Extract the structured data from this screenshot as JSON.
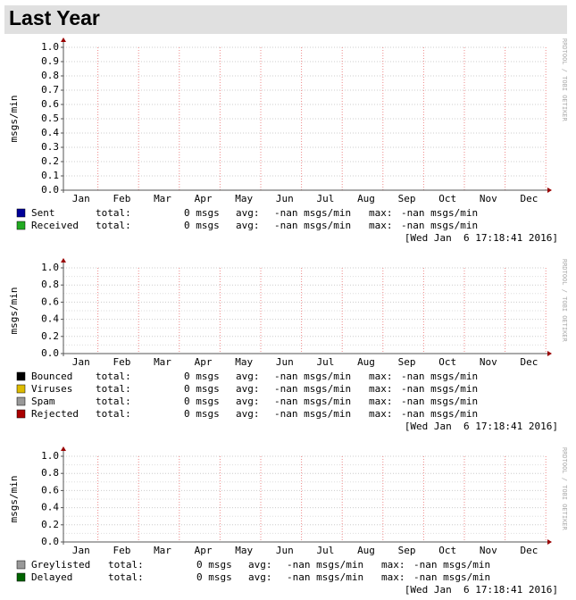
{
  "header": {
    "title": "Last Year"
  },
  "chart_data": [
    {
      "type": "line",
      "ylabel": "msgs/min",
      "watermark": "RRDTOOL / TOBI OETIKER",
      "categories": [
        "Jan",
        "Feb",
        "Mar",
        "Apr",
        "May",
        "Jun",
        "Jul",
        "Aug",
        "Sep",
        "Oct",
        "Nov",
        "Dec"
      ],
      "ylim": [
        0,
        1
      ],
      "yticks": [
        {
          "value": 0,
          "label": "0.0"
        },
        0.1,
        0.2,
        0.3,
        0.4,
        0.5,
        0.6,
        0.7,
        0.8,
        0.9,
        {
          "value": 1,
          "label": "1.0"
        }
      ],
      "grid": true,
      "series": [
        {
          "name": "Sent",
          "color": "#000099",
          "total_label": "total:",
          "total": "0 msgs",
          "avg_label": "avg:",
          "avg": "-nan msgs/min",
          "max_label": "max:",
          "max": "-nan msgs/min"
        },
        {
          "name": "Received",
          "color": "#22aa22",
          "total_label": "total:",
          "total": "0 msgs",
          "avg_label": "avg:",
          "avg": "-nan msgs/min",
          "max_label": "max:",
          "max": "-nan msgs/min"
        }
      ],
      "timestamp": "[Wed Jan  6 17:18:41 2016]"
    },
    {
      "type": "line",
      "ylabel": "msgs/min",
      "watermark": "RRDTOOL / TOBI OETIKER",
      "categories": [
        "Jan",
        "Feb",
        "Mar",
        "Apr",
        "May",
        "Jun",
        "Jul",
        "Aug",
        "Sep",
        "Oct",
        "Nov",
        "Dec"
      ],
      "ylim": [
        0,
        1
      ],
      "yticks": [
        {
          "value": 0,
          "label": "0.0"
        },
        0.2,
        0.4,
        0.6,
        0.8,
        {
          "value": 1,
          "label": "1.0"
        }
      ],
      "grid": true,
      "series": [
        {
          "name": "Bounced",
          "color": "#000000",
          "total_label": "total:",
          "total": "0 msgs",
          "avg_label": "avg:",
          "avg": "-nan msgs/min",
          "max_label": "max:",
          "max": "-nan msgs/min"
        },
        {
          "name": "Viruses",
          "color": "#ddbb00",
          "total_label": "total:",
          "total": "0 msgs",
          "avg_label": "avg:",
          "avg": "-nan msgs/min",
          "max_label": "max:",
          "max": "-nan msgs/min"
        },
        {
          "name": "Spam",
          "color": "#999999",
          "total_label": "total:",
          "total": "0 msgs",
          "avg_label": "avg:",
          "avg": "-nan msgs/min",
          "max_label": "max:",
          "max": "-nan msgs/min"
        },
        {
          "name": "Rejected",
          "color": "#aa0000",
          "total_label": "total:",
          "total": "0 msgs",
          "avg_label": "avg:",
          "avg": "-nan msgs/min",
          "max_label": "max:",
          "max": "-nan msgs/min"
        }
      ],
      "timestamp": "[Wed Jan  6 17:18:41 2016]"
    },
    {
      "type": "line",
      "ylabel": "msgs/min",
      "watermark": "RRDTOOL / TOBI OETIKER",
      "categories": [
        "Jan",
        "Feb",
        "Mar",
        "Apr",
        "May",
        "Jun",
        "Jul",
        "Aug",
        "Sep",
        "Oct",
        "Nov",
        "Dec"
      ],
      "ylim": [
        0,
        1
      ],
      "yticks": [
        {
          "value": 0,
          "label": "0.0"
        },
        0.2,
        0.4,
        0.6,
        0.8,
        {
          "value": 1,
          "label": "1.0"
        }
      ],
      "grid": true,
      "series": [
        {
          "name": "Greylisted",
          "color": "#999999",
          "total_label": "total:",
          "total": "0 msgs",
          "avg_label": "avg:",
          "avg": "-nan msgs/min",
          "max_label": "max:",
          "max": "-nan msgs/min"
        },
        {
          "name": "Delayed",
          "color": "#006400",
          "total_label": "total:",
          "total": "0 msgs",
          "avg_label": "avg:",
          "avg": "-nan msgs/min",
          "max_label": "max:",
          "max": "-nan msgs/min"
        }
      ],
      "timestamp": "[Wed Jan  6 17:18:41 2016]"
    }
  ]
}
